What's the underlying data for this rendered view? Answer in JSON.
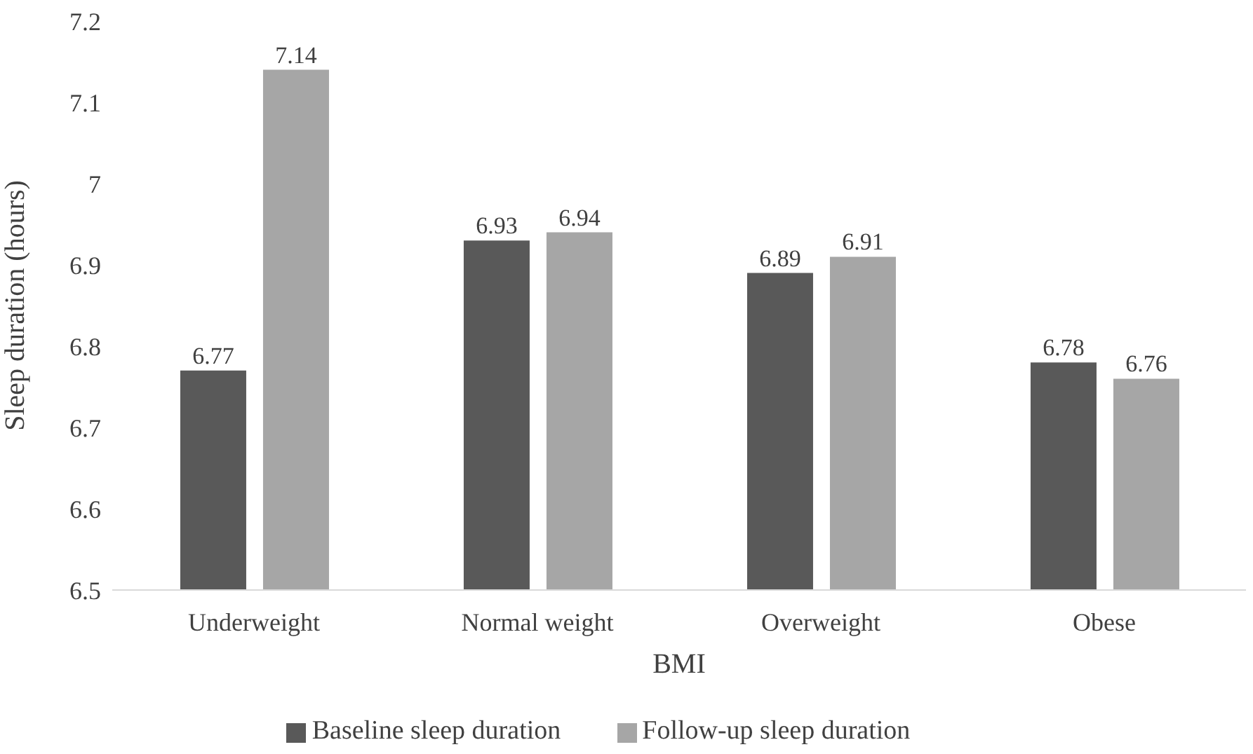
{
  "chart_data": {
    "type": "bar",
    "xlabel": "BMI",
    "ylabel": "Sleep duration (hours)",
    "categories": [
      "Underweight",
      "Normal weight",
      "Overweight",
      "Obese"
    ],
    "series": [
      {
        "name": "Baseline sleep duration",
        "color": "#595959",
        "values": [
          6.77,
          6.93,
          6.89,
          6.78
        ]
      },
      {
        "name": "Follow-up sleep duration",
        "color": "#a6a6a6",
        "values": [
          7.14,
          6.94,
          6.91,
          6.76
        ]
      }
    ],
    "ylim": [
      6.5,
      7.2
    ],
    "yticks": [
      6.5,
      6.6,
      6.7,
      6.8,
      6.9,
      7,
      7.1,
      7.2
    ],
    "grid": false,
    "legend": "bottom",
    "data_labels": true
  }
}
